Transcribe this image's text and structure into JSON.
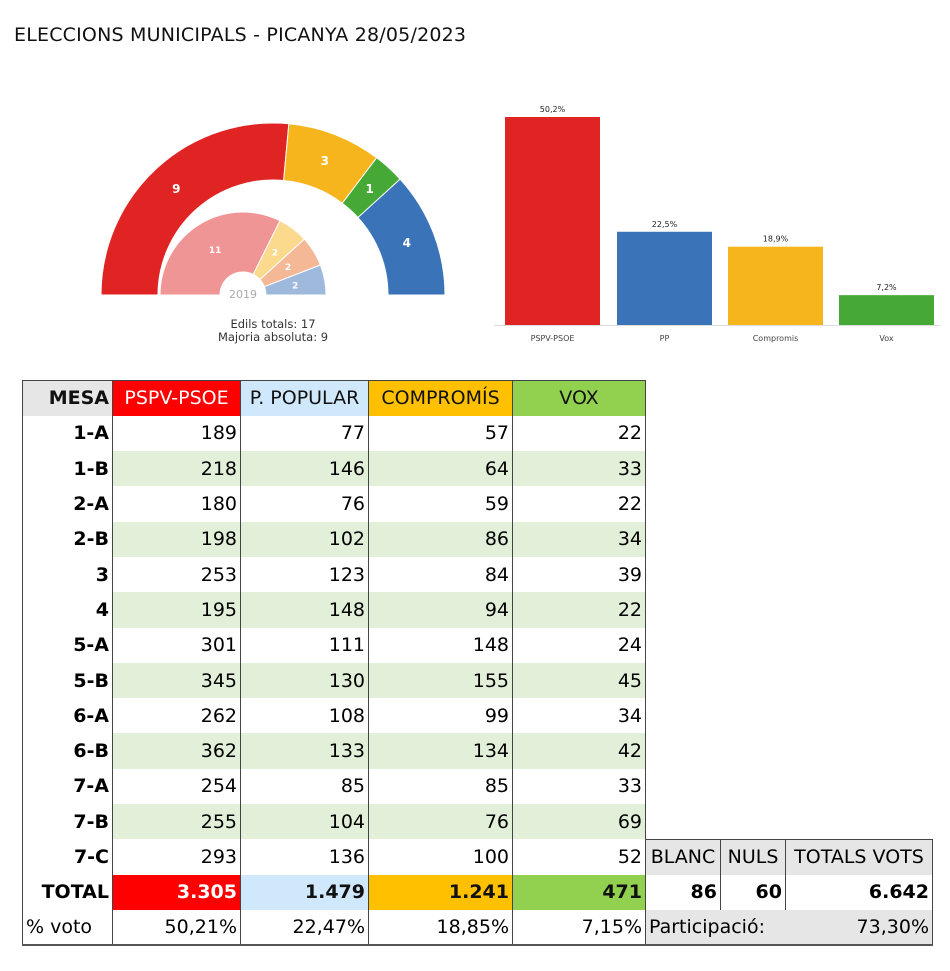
{
  "title": "ELECCIONS MUNICIPALS - PICANYA 28/05/2023",
  "chart_data": [
    {
      "type": "hemicycle",
      "title": "Edils",
      "seats_2023": [
        {
          "party": "PSPV-PSOE",
          "seats": 9,
          "color": "#e02424"
        },
        {
          "party": "Compromís",
          "seats": 3,
          "color": "#f7b51d"
        },
        {
          "party": "Vox",
          "seats": 1,
          "color": "#46a835"
        },
        {
          "party": "PP",
          "seats": 4,
          "color": "#3a73b8"
        }
      ],
      "seats_2019": [
        {
          "seats": 11,
          "color": "#f09595"
        },
        {
          "seats": 2,
          "color": "#fbd98d"
        },
        {
          "seats": 2,
          "color": "#f5b896"
        },
        {
          "seats": 2,
          "color": "#9fb9dd"
        }
      ],
      "inner_label": "2019",
      "note1": "Edils totals: 17",
      "note2": "Majoria absoluta: 9"
    },
    {
      "type": "bar",
      "categories": [
        "PSPV-PSOE",
        "PP",
        "Compromis",
        "Vox"
      ],
      "values": [
        50.2,
        22.5,
        18.9,
        7.2
      ],
      "labels": [
        "50,2%",
        "22,5%",
        "18,9%",
        "7,2%"
      ],
      "colors": [
        "#e02424",
        "#3a73b8",
        "#f7b51d",
        "#46a835"
      ],
      "ylim": [
        0,
        50.2
      ]
    }
  ],
  "table": {
    "headers": [
      "MESA",
      "PSPV-PSOE",
      "P. POPULAR",
      "COMPROMÍS",
      "VOX"
    ],
    "header_colors": [
      "#e6e6e6",
      "#ff0000",
      "#cfe8fb",
      "#ffc000",
      "#92d050"
    ],
    "rows": [
      [
        "1-A",
        "189",
        "77",
        "57",
        "22"
      ],
      [
        "1-B",
        "218",
        "146",
        "64",
        "33"
      ],
      [
        "2-A",
        "180",
        "76",
        "59",
        "22"
      ],
      [
        "2-B",
        "198",
        "102",
        "86",
        "34"
      ],
      [
        "3",
        "253",
        "123",
        "84",
        "39"
      ],
      [
        "4",
        "195",
        "148",
        "94",
        "22"
      ],
      [
        "5-A",
        "301",
        "111",
        "148",
        "24"
      ],
      [
        "5-B",
        "345",
        "130",
        "155",
        "45"
      ],
      [
        "6-A",
        "262",
        "108",
        "99",
        "34"
      ],
      [
        "6-B",
        "362",
        "133",
        "134",
        "42"
      ],
      [
        "7-A",
        "254",
        "85",
        "85",
        "33"
      ],
      [
        "7-B",
        "255",
        "104",
        "76",
        "69"
      ],
      [
        "7-C",
        "293",
        "136",
        "100",
        "52"
      ]
    ],
    "total": [
      "TOTAL",
      "3.305",
      "1.479",
      "1.241",
      "471"
    ],
    "pct": [
      "% voto",
      "50,21%",
      "22,47%",
      "18,85%",
      "7,15%"
    ],
    "extra_headers": [
      "BLANC",
      "NULS",
      "TOTALS VOTS"
    ],
    "extra_totals": [
      "86",
      "60",
      "6.642"
    ],
    "participation_label": "Participació:",
    "participation": "73,30%"
  }
}
